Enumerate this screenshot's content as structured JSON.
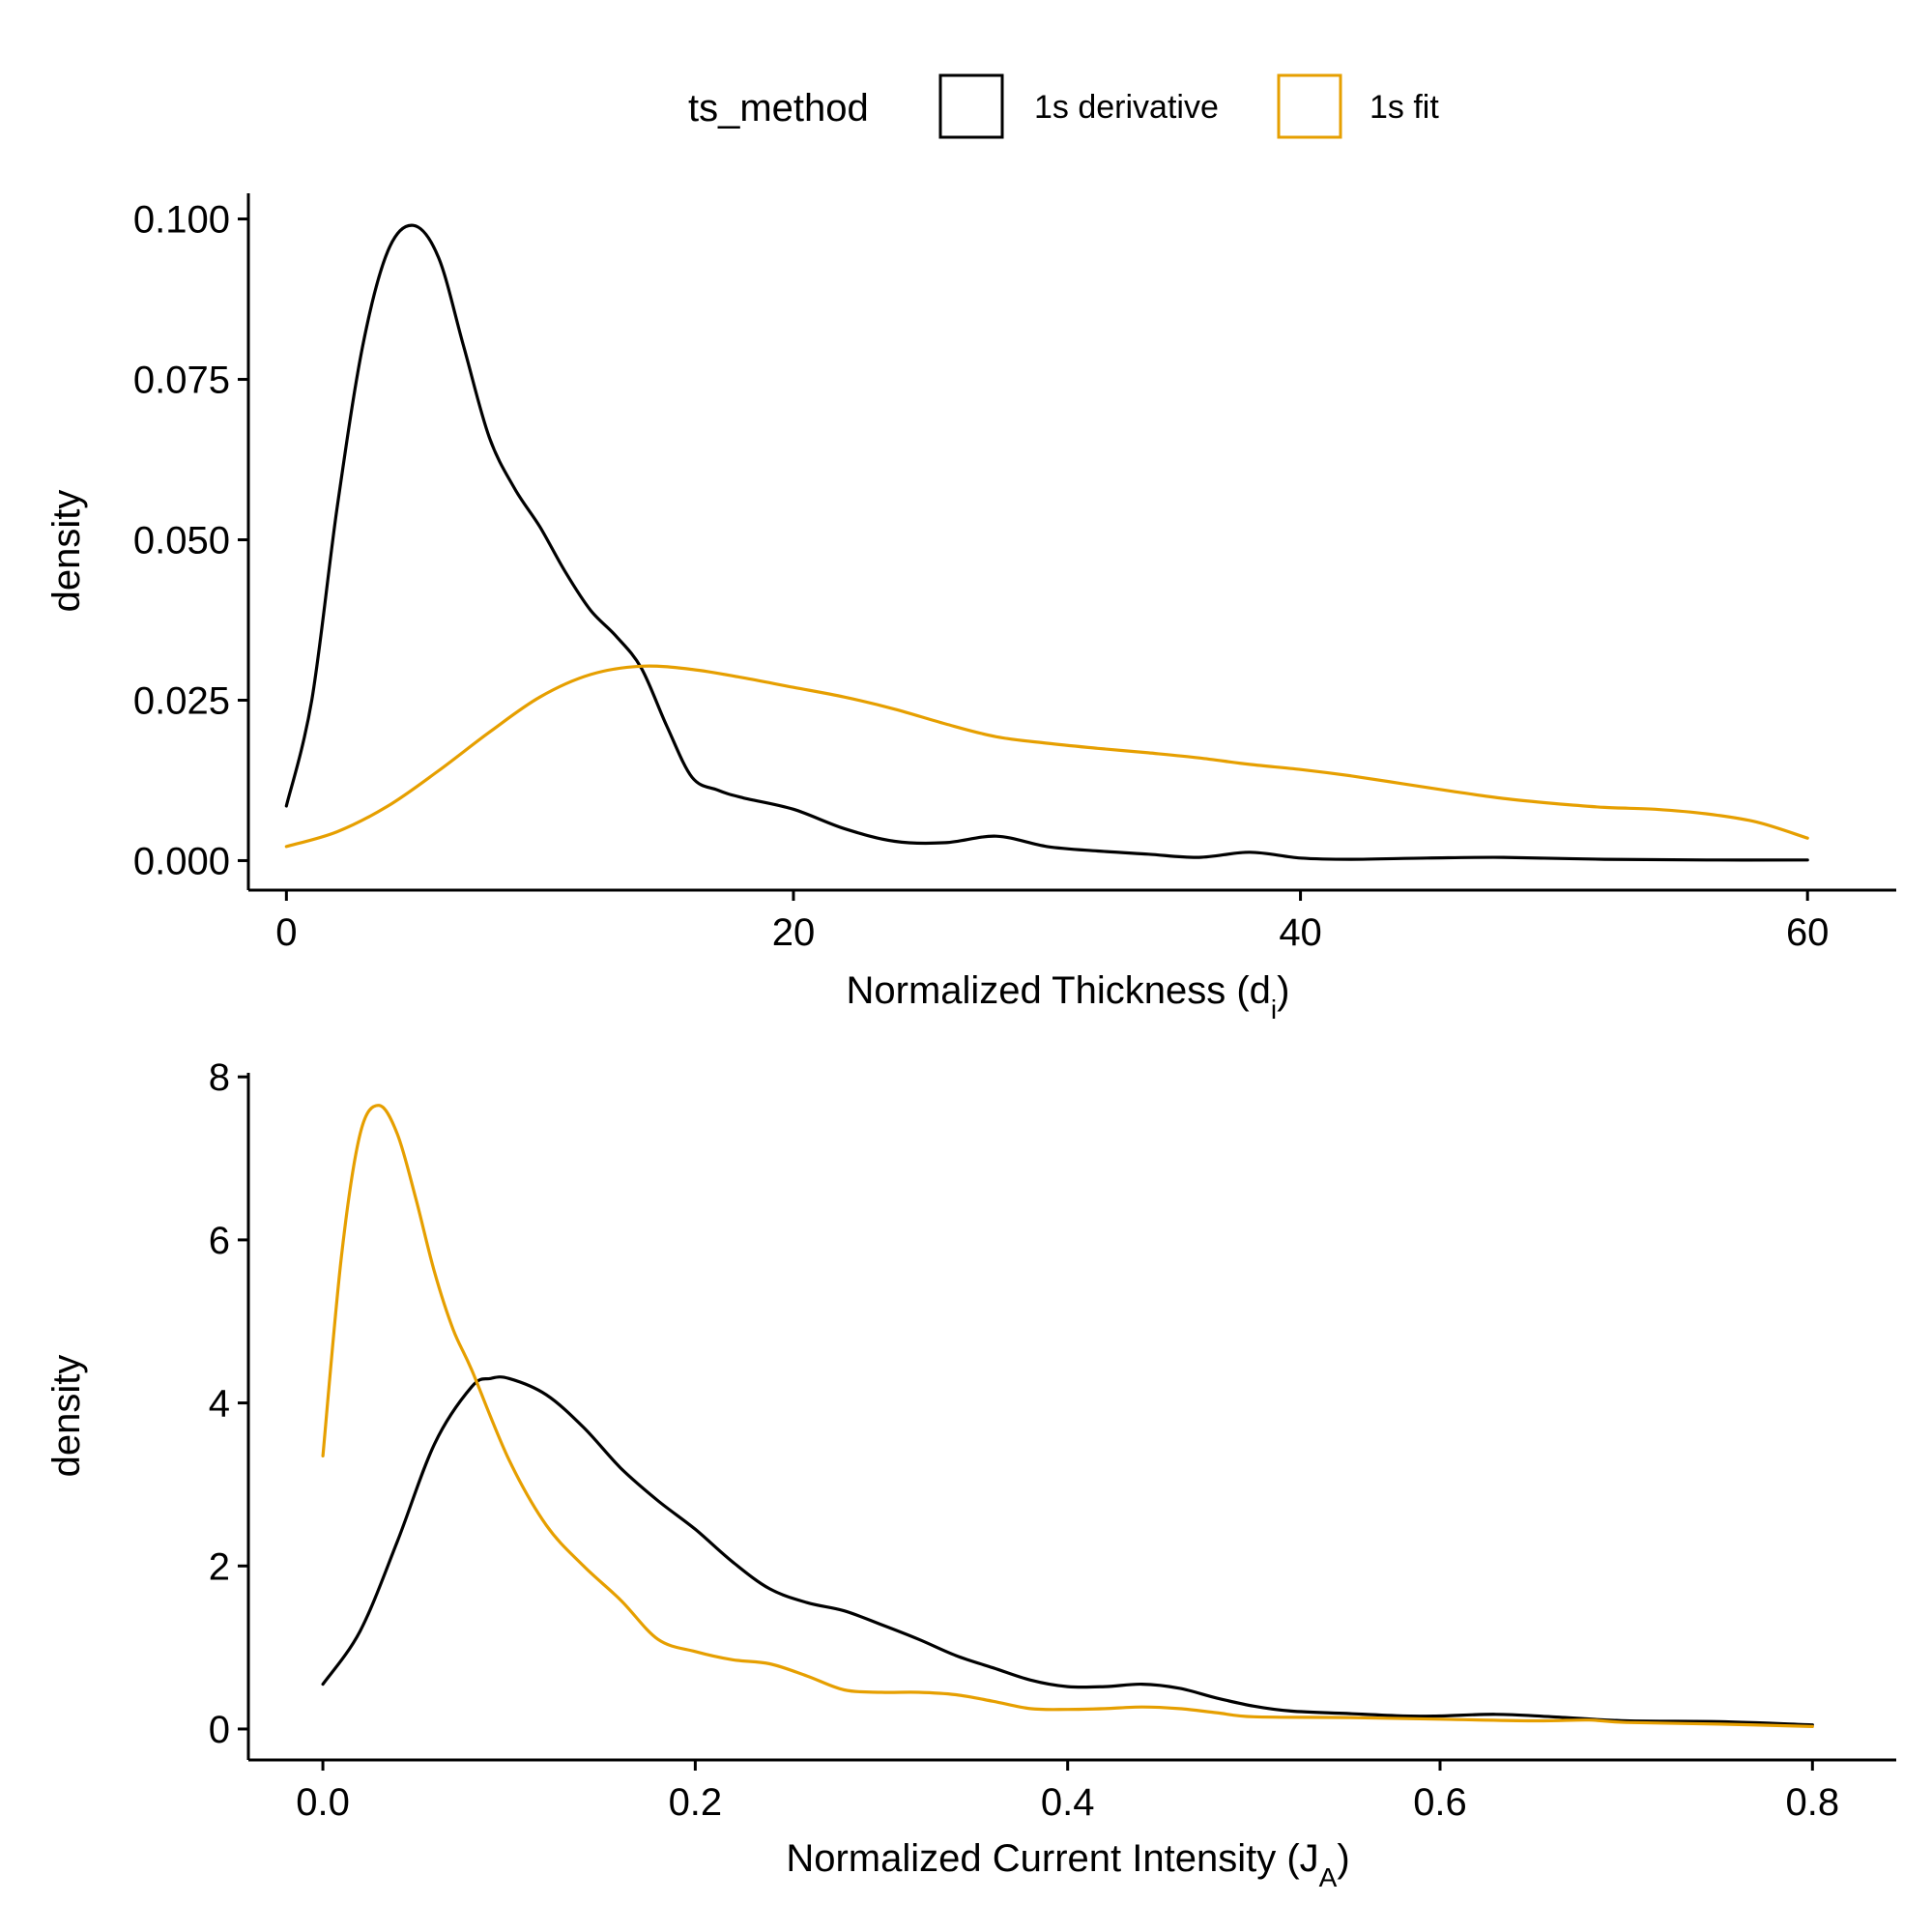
{
  "legend": {
    "title": "ts_method",
    "placement": "top",
    "items": [
      {
        "label": "1s derivative",
        "color": "#000000"
      },
      {
        "label": "1s fit",
        "color": "#E69F00"
      }
    ]
  },
  "chart_data": [
    {
      "type": "line",
      "xlabel": "Normalized Thickness (d",
      "xlabel_sub": "i",
      "xlabel_end": ")",
      "ylabel": "density",
      "xlim": [
        -1.5,
        63.5
      ],
      "ylim": [
        -0.0046,
        0.104
      ],
      "x_ticks": [
        0,
        20,
        40,
        60
      ],
      "x_tick_labels": [
        "0",
        "20",
        "40",
        "60"
      ],
      "y_ticks": [
        0,
        0.025,
        0.05,
        0.075,
        0.1
      ],
      "y_tick_labels": [
        "0.000",
        "0.025",
        "0.050",
        "0.075",
        "0.100"
      ],
      "grid": false,
      "series": [
        {
          "name": "1s derivative",
          "color": "#000000",
          "x": [
            0,
            1,
            2,
            3,
            4,
            5,
            6,
            7,
            8,
            9,
            10,
            11,
            12,
            13,
            14,
            15,
            16,
            17,
            18,
            20,
            22,
            24,
            26,
            28,
            30,
            32,
            34,
            36,
            38,
            40,
            42,
            45,
            48,
            52,
            56,
            60
          ],
          "y": [
            0.0085,
            0.025,
            0.055,
            0.08,
            0.095,
            0.099,
            0.094,
            0.08,
            0.066,
            0.058,
            0.052,
            0.045,
            0.039,
            0.035,
            0.03,
            0.021,
            0.013,
            0.011,
            0.0098,
            0.008,
            0.005,
            0.003,
            0.0028,
            0.0038,
            0.0022,
            0.0015,
            0.001,
            0.0005,
            0.0013,
            0.0004,
            0.0002,
            0.0004,
            0.0005,
            0.0002,
            0.0001,
            0.0001
          ]
        },
        {
          "name": "1s fit",
          "color": "#E69F00",
          "x": [
            0,
            2,
            4,
            6,
            8,
            10,
            12,
            14,
            16,
            18,
            20,
            22,
            24,
            26,
            28,
            30,
            32,
            34,
            36,
            38,
            40,
            42,
            44,
            46,
            48,
            50,
            52,
            54,
            56,
            58,
            60
          ],
          "y": [
            0.0022,
            0.0045,
            0.0085,
            0.014,
            0.02,
            0.0255,
            0.029,
            0.0303,
            0.0298,
            0.0285,
            0.027,
            0.0255,
            0.0236,
            0.0213,
            0.0193,
            0.0183,
            0.0175,
            0.0168,
            0.016,
            0.015,
            0.0142,
            0.0132,
            0.012,
            0.0108,
            0.0097,
            0.0089,
            0.0083,
            0.008,
            0.0073,
            0.006,
            0.0035
          ]
        }
      ]
    },
    {
      "type": "line",
      "xlabel": "Normalized Current Intensity (J",
      "xlabel_sub": "A",
      "xlabel_end": ")",
      "ylabel": "density",
      "xlim": [
        -0.04,
        0.845
      ],
      "ylim": [
        -0.38,
        8.05
      ],
      "x_ticks": [
        0,
        0.2,
        0.4,
        0.6,
        0.8
      ],
      "x_tick_labels": [
        "0.0",
        "0.2",
        "0.4",
        "0.6",
        "0.8"
      ],
      "y_ticks": [
        0,
        2,
        4,
        6,
        8
      ],
      "y_tick_labels": [
        "0",
        "2",
        "4",
        "6",
        "8"
      ],
      "grid": false,
      "series": [
        {
          "name": "1s derivative",
          "color": "#000000",
          "x": [
            0,
            0.02,
            0.04,
            0.06,
            0.08,
            0.09,
            0.1,
            0.12,
            0.14,
            0.16,
            0.18,
            0.2,
            0.22,
            0.24,
            0.26,
            0.28,
            0.3,
            0.32,
            0.34,
            0.36,
            0.38,
            0.4,
            0.42,
            0.44,
            0.46,
            0.48,
            0.5,
            0.52,
            0.55,
            0.58,
            0.6,
            0.63,
            0.66,
            0.7,
            0.75,
            0.8
          ],
          "y": [
            0.55,
            1.2,
            2.3,
            3.5,
            4.2,
            4.3,
            4.3,
            4.1,
            3.7,
            3.2,
            2.8,
            2.45,
            2.05,
            1.72,
            1.55,
            1.45,
            1.28,
            1.1,
            0.9,
            0.75,
            0.6,
            0.52,
            0.52,
            0.55,
            0.5,
            0.38,
            0.28,
            0.22,
            0.19,
            0.16,
            0.16,
            0.18,
            0.15,
            0.1,
            0.09,
            0.05
          ]
        },
        {
          "name": "1s fit",
          "color": "#E69F00",
          "x": [
            0,
            0.01,
            0.02,
            0.03,
            0.04,
            0.05,
            0.06,
            0.07,
            0.08,
            0.1,
            0.12,
            0.14,
            0.16,
            0.18,
            0.2,
            0.22,
            0.24,
            0.26,
            0.28,
            0.3,
            0.32,
            0.34,
            0.36,
            0.38,
            0.4,
            0.42,
            0.44,
            0.46,
            0.48,
            0.5,
            0.55,
            0.6,
            0.65,
            0.68,
            0.7,
            0.75,
            0.8
          ],
          "y": [
            3.35,
            5.8,
            7.3,
            7.65,
            7.3,
            6.5,
            5.6,
            4.9,
            4.4,
            3.3,
            2.5,
            2.0,
            1.58,
            1.1,
            0.95,
            0.85,
            0.8,
            0.65,
            0.48,
            0.45,
            0.45,
            0.42,
            0.34,
            0.25,
            0.24,
            0.25,
            0.27,
            0.25,
            0.2,
            0.15,
            0.14,
            0.12,
            0.1,
            0.11,
            0.08,
            0.06,
            0.03
          ]
        }
      ]
    }
  ]
}
